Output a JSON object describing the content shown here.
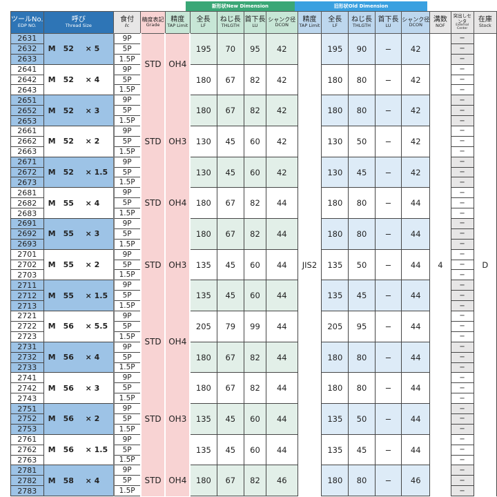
{
  "header": {
    "new_dimension_jp": "新形状",
    "new_dimension_en": "New Dimension",
    "old_dimension_jp": "旧形状",
    "old_dimension_en": "Old Dimension",
    "columns": [
      {
        "jp": "ツールNo.",
        "en": "EDP NO."
      },
      {
        "jp": "呼び",
        "en": "Thread Size"
      },
      {
        "jp": "食付",
        "en": "ℓc"
      },
      {
        "jp": "精度表記",
        "en": "Grade"
      },
      {
        "jp": "精度",
        "en": "TAP Limit"
      },
      {
        "jp": "全長",
        "en": "LF"
      },
      {
        "jp": "ねじ長",
        "en": "THLGTH"
      },
      {
        "jp": "首下長",
        "en": "LU"
      },
      {
        "jp": "シャンク径",
        "en": "DCON"
      },
      {
        "jp": "精度",
        "en": "TAP Limit"
      },
      {
        "jp": "全長",
        "en": "LF"
      },
      {
        "jp": "ねじ長",
        "en": "THLGTH"
      },
      {
        "jp": "首下長",
        "en": "LU"
      },
      {
        "jp": "シャンク径",
        "en": "DCON"
      },
      {
        "jp": "溝数",
        "en": "NOF"
      },
      {
        "jp": "突出しセンタ",
        "en": "External Center"
      },
      {
        "jp": "在庫",
        "en": "Stock"
      }
    ]
  },
  "colors": {
    "new_header": "#3aa776",
    "old_header": "#39a0e0",
    "row_blue": "#9dc3e6",
    "new_fill": "#e2efe8",
    "old_fill": "#ddebf7",
    "grade_fill": "#f8d3d3",
    "ext_fill": "#e7e6e6"
  },
  "feeds": [
    "9P",
    "5P",
    "1.5P"
  ],
  "ext_center": "−",
  "old_tap_limit": "JIS2",
  "nof": "4",
  "stock": "D",
  "grades": [
    {
      "groups": 2,
      "grade": "STD",
      "tap_limit": "OH4"
    },
    {
      "groups": 3,
      "grade": "STD",
      "tap_limit": "OH3"
    },
    {
      "groups": 1,
      "grade": "STD",
      "tap_limit": "OH4"
    },
    {
      "groups": 3,
      "grade": "STD",
      "tap_limit": "OH3"
    },
    {
      "groups": 2,
      "grade": "STD",
      "tap_limit": "OH4"
    },
    {
      "groups": 3,
      "grade": "STD",
      "tap_limit": "OH3"
    },
    {
      "groups": 1,
      "grade": "STD",
      "tap_limit": "OH4"
    }
  ],
  "groups": [
    {
      "edp": [
        "2631",
        "2632",
        "2633"
      ],
      "m": "M",
      "d": "52",
      "p": "× 5",
      "shaded": true,
      "new": [
        "195",
        "70",
        "95",
        "42"
      ],
      "old": [
        "195",
        "90",
        "−",
        "42"
      ]
    },
    {
      "edp": [
        "2641",
        "2642",
        "2643"
      ],
      "m": "M",
      "d": "52",
      "p": "× 4",
      "shaded": false,
      "new": [
        "180",
        "67",
        "82",
        "42"
      ],
      "old": [
        "180",
        "80",
        "−",
        "42"
      ]
    },
    {
      "edp": [
        "2651",
        "2652",
        "2653"
      ],
      "m": "M",
      "d": "52",
      "p": "× 3",
      "shaded": true,
      "new": [
        "180",
        "67",
        "82",
        "42"
      ],
      "old": [
        "180",
        "80",
        "−",
        "42"
      ]
    },
    {
      "edp": [
        "2661",
        "2662",
        "2663"
      ],
      "m": "M",
      "d": "52",
      "p": "× 2",
      "shaded": false,
      "new": [
        "130",
        "45",
        "60",
        "42"
      ],
      "old": [
        "130",
        "50",
        "−",
        "42"
      ]
    },
    {
      "edp": [
        "2671",
        "2672",
        "2673"
      ],
      "m": "M",
      "d": "52",
      "p": "× 1.5",
      "shaded": true,
      "new": [
        "130",
        "45",
        "60",
        "42"
      ],
      "old": [
        "130",
        "45",
        "−",
        "42"
      ]
    },
    {
      "edp": [
        "2681",
        "2682",
        "2683"
      ],
      "m": "M",
      "d": "55",
      "p": "× 4",
      "shaded": false,
      "new": [
        "180",
        "67",
        "82",
        "44"
      ],
      "old": [
        "180",
        "80",
        "−",
        "44"
      ]
    },
    {
      "edp": [
        "2691",
        "2692",
        "2693"
      ],
      "m": "M",
      "d": "55",
      "p": "× 3",
      "shaded": true,
      "new": [
        "180",
        "67",
        "82",
        "44"
      ],
      "old": [
        "180",
        "80",
        "−",
        "44"
      ]
    },
    {
      "edp": [
        "2701",
        "2702",
        "2703"
      ],
      "m": "M",
      "d": "55",
      "p": "× 2",
      "shaded": false,
      "new": [
        "135",
        "45",
        "60",
        "44"
      ],
      "old": [
        "135",
        "50",
        "−",
        "44"
      ]
    },
    {
      "edp": [
        "2711",
        "2712",
        "2713"
      ],
      "m": "M",
      "d": "55",
      "p": "× 1.5",
      "shaded": true,
      "new": [
        "135",
        "45",
        "60",
        "44"
      ],
      "old": [
        "135",
        "45",
        "−",
        "44"
      ]
    },
    {
      "edp": [
        "2721",
        "2722",
        "2723"
      ],
      "m": "M",
      "d": "56",
      "p": "× 5.5",
      "shaded": false,
      "new": [
        "205",
        "79",
        "99",
        "44"
      ],
      "old": [
        "205",
        "95",
        "−",
        "44"
      ]
    },
    {
      "edp": [
        "2731",
        "2732",
        "2733"
      ],
      "m": "M",
      "d": "56",
      "p": "× 4",
      "shaded": true,
      "new": [
        "180",
        "67",
        "82",
        "44"
      ],
      "old": [
        "180",
        "80",
        "−",
        "44"
      ]
    },
    {
      "edp": [
        "2741",
        "2742",
        "2743"
      ],
      "m": "M",
      "d": "56",
      "p": "× 3",
      "shaded": false,
      "new": [
        "180",
        "67",
        "82",
        "44"
      ],
      "old": [
        "180",
        "80",
        "−",
        "44"
      ]
    },
    {
      "edp": [
        "2751",
        "2752",
        "2753"
      ],
      "m": "M",
      "d": "56",
      "p": "× 2",
      "shaded": true,
      "new": [
        "135",
        "45",
        "60",
        "44"
      ],
      "old": [
        "135",
        "50",
        "−",
        "44"
      ]
    },
    {
      "edp": [
        "2761",
        "2762",
        "2763"
      ],
      "m": "M",
      "d": "56",
      "p": "× 1.5",
      "shaded": false,
      "new": [
        "135",
        "45",
        "60",
        "44"
      ],
      "old": [
        "135",
        "45",
        "−",
        "44"
      ]
    },
    {
      "edp": [
        "2781",
        "2782",
        "2783"
      ],
      "m": "M",
      "d": "58",
      "p": "× 4",
      "shaded": true,
      "new": [
        "180",
        "67",
        "82",
        "46"
      ],
      "old": [
        "180",
        "80",
        "−",
        "46"
      ]
    }
  ]
}
